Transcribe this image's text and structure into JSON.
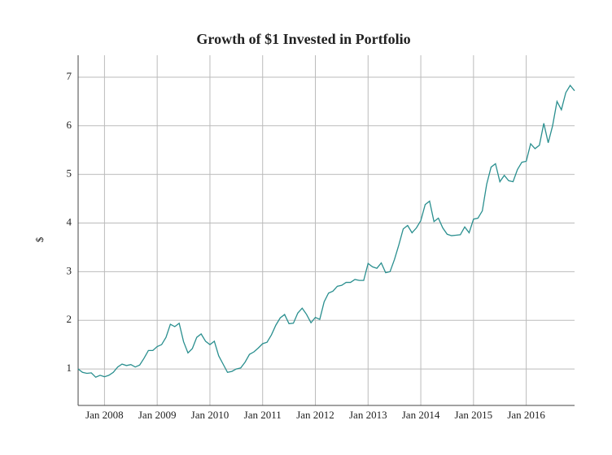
{
  "chart_data": {
    "type": "line",
    "title": "Growth of $1 Invested in Portfolio",
    "y_label": "$",
    "color": "#2a8f8f",
    "grid": true,
    "x": [
      "2007-07",
      "2007-08",
      "2007-09",
      "2007-10",
      "2007-11",
      "2007-12",
      "2008-01",
      "2008-02",
      "2008-03",
      "2008-04",
      "2008-05",
      "2008-06",
      "2008-07",
      "2008-08",
      "2008-09",
      "2008-10",
      "2008-11",
      "2008-12",
      "2009-01",
      "2009-02",
      "2009-03",
      "2009-04",
      "2009-05",
      "2009-06",
      "2009-07",
      "2009-08",
      "2009-09",
      "2009-10",
      "2009-11",
      "2009-12",
      "2010-01",
      "2010-02",
      "2010-03",
      "2010-04",
      "2010-05",
      "2010-06",
      "2010-07",
      "2010-08",
      "2010-09",
      "2010-10",
      "2010-11",
      "2010-12",
      "2011-01",
      "2011-02",
      "2011-03",
      "2011-04",
      "2011-05",
      "2011-06",
      "2011-07",
      "2011-08",
      "2011-09",
      "2011-10",
      "2011-11",
      "2011-12",
      "2012-01",
      "2012-02",
      "2012-03",
      "2012-04",
      "2012-05",
      "2012-06",
      "2012-07",
      "2012-08",
      "2012-09",
      "2012-10",
      "2012-11",
      "2012-12",
      "2013-01",
      "2013-02",
      "2013-03",
      "2013-04",
      "2013-05",
      "2013-06",
      "2013-07",
      "2013-08",
      "2013-09",
      "2013-10",
      "2013-11",
      "2013-12",
      "2014-01",
      "2014-02",
      "2014-03",
      "2014-04",
      "2014-05",
      "2014-06",
      "2014-07",
      "2014-08",
      "2014-09",
      "2014-10",
      "2014-11",
      "2014-12",
      "2015-01",
      "2015-02",
      "2015-03",
      "2015-04",
      "2015-05",
      "2015-06",
      "2015-07",
      "2015-08",
      "2015-09",
      "2015-10",
      "2015-11",
      "2015-12",
      "2016-01",
      "2016-02",
      "2016-03",
      "2016-04",
      "2016-05",
      "2016-06",
      "2016-07",
      "2016-08",
      "2016-09",
      "2016-10",
      "2016-11",
      "2016-12"
    ],
    "values": [
      1.0,
      0.93,
      0.91,
      0.92,
      0.83,
      0.87,
      0.84,
      0.87,
      0.93,
      1.04,
      1.1,
      1.07,
      1.09,
      1.04,
      1.08,
      1.22,
      1.38,
      1.38,
      1.46,
      1.5,
      1.65,
      1.92,
      1.87,
      1.94,
      1.56,
      1.33,
      1.42,
      1.65,
      1.72,
      1.57,
      1.5,
      1.57,
      1.27,
      1.1,
      0.93,
      0.95,
      1.0,
      1.02,
      1.14,
      1.3,
      1.35,
      1.43,
      1.52,
      1.55,
      1.7,
      1.9,
      2.05,
      2.12,
      1.93,
      1.94,
      2.15,
      2.25,
      2.12,
      1.95,
      2.06,
      2.02,
      2.38,
      2.56,
      2.6,
      2.7,
      2.72,
      2.78,
      2.78,
      2.84,
      2.82,
      2.82,
      3.17,
      3.1,
      3.07,
      3.18,
      2.98,
      3.0,
      3.25,
      3.55,
      3.88,
      3.95,
      3.8,
      3.9,
      4.05,
      4.38,
      4.45,
      4.03,
      4.1,
      3.9,
      3.77,
      3.74,
      3.75,
      3.76,
      3.92,
      3.8,
      4.08,
      4.1,
      4.25,
      4.8,
      5.15,
      5.22,
      4.85,
      4.98,
      4.87,
      4.85,
      5.1,
      5.25,
      5.27,
      5.63,
      5.53,
      5.6,
      6.05,
      5.65,
      6.0,
      6.5,
      6.33,
      6.68,
      6.83,
      6.72
    ],
    "xlim": [
      "2007-07",
      "2016-12"
    ],
    "xticks": [
      {
        "value": "2008-01",
        "label": "Jan 2008"
      },
      {
        "value": "2009-01",
        "label": "Jan 2009"
      },
      {
        "value": "2010-01",
        "label": "Jan 2010"
      },
      {
        "value": "2011-01",
        "label": "Jan 2011"
      },
      {
        "value": "2012-01",
        "label": "Jan 2012"
      },
      {
        "value": "2013-01",
        "label": "Jan 2013"
      },
      {
        "value": "2014-01",
        "label": "Jan 2014"
      },
      {
        "value": "2015-01",
        "label": "Jan 2015"
      },
      {
        "value": "2016-01",
        "label": "Jan 2016"
      }
    ],
    "ylim": [
      0.25,
      7.45
    ],
    "yticks": [
      1,
      2,
      3,
      4,
      5,
      6,
      7
    ]
  }
}
